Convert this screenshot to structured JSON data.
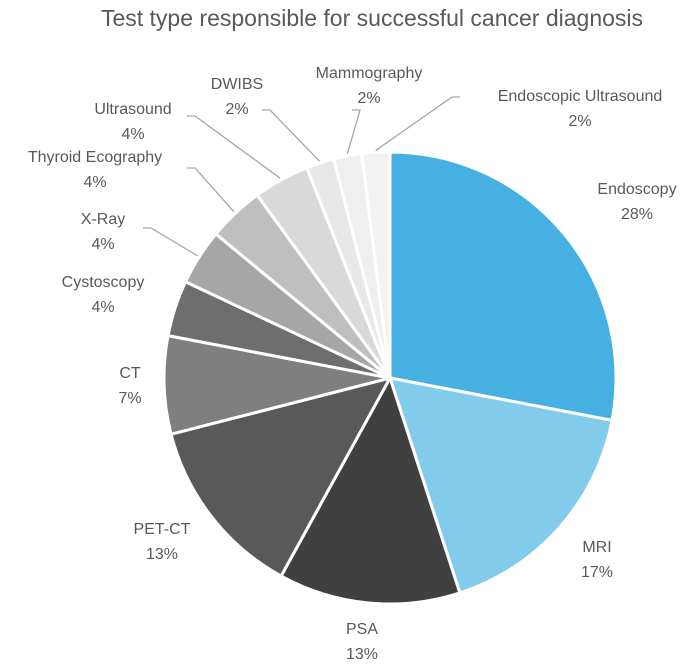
{
  "chart_data": {
    "type": "pie",
    "title": "Test type responsible for successful cancer diagnosis",
    "categories": [
      "Endoscopy",
      "MRI",
      "PSA",
      "PET-CT",
      "CT",
      "Cystoscopy",
      "X-Ray",
      "Thyroid Ecography",
      "Ultrasound",
      "DWIBS",
      "Mammography",
      "Endoscopic Ultrasound"
    ],
    "values": [
      28,
      17,
      13,
      13,
      7,
      4,
      4,
      4,
      4,
      2,
      2,
      2
    ],
    "value_labels": [
      "28%",
      "17%",
      "13%",
      "13%",
      "7%",
      "4%",
      "4%",
      "4%",
      "4%",
      "2%",
      "2%",
      "2%"
    ],
    "colors": [
      "#45b0e1",
      "#83cbeb",
      "#404040",
      "#595959",
      "#7f7f7f",
      "#6e6e6e",
      "#a6a6a6",
      "#bfbfbf",
      "#d9d9d9",
      "#e8e8e8",
      "#efefef",
      "#f2f2f2"
    ]
  }
}
